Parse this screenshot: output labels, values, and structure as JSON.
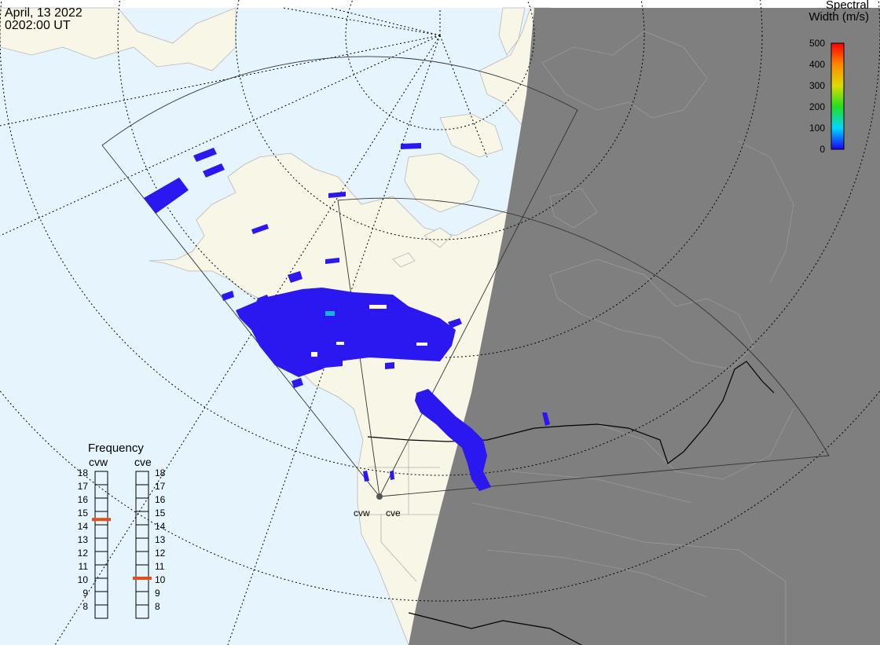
{
  "header": {
    "date": "April, 13 2022",
    "time": "0202:00 UT"
  },
  "colorbar": {
    "title_line1": "Spectral",
    "title_line2": "Width (m/s)",
    "ticks": [
      "500",
      "400",
      "300",
      "200",
      "100",
      "0"
    ]
  },
  "frequency": {
    "title": "Frequency",
    "radars": [
      {
        "name": "cvw",
        "current_mhz": 14.9
      },
      {
        "name": "cve",
        "current_mhz": 10.5
      }
    ],
    "scale": [
      "18",
      "17",
      "16",
      "15",
      "14",
      "13",
      "12",
      "11",
      "10",
      "9",
      "8"
    ],
    "indicator_color": "#e0501c"
  },
  "sites": {
    "west": "cvw",
    "east": "cve"
  },
  "colors": {
    "ocean": "#e6f4fd",
    "land": "#f8f6e6",
    "night": "#7f7f7f",
    "scatter": "#2b17f0",
    "scatter_light": "#1cb0e8"
  }
}
